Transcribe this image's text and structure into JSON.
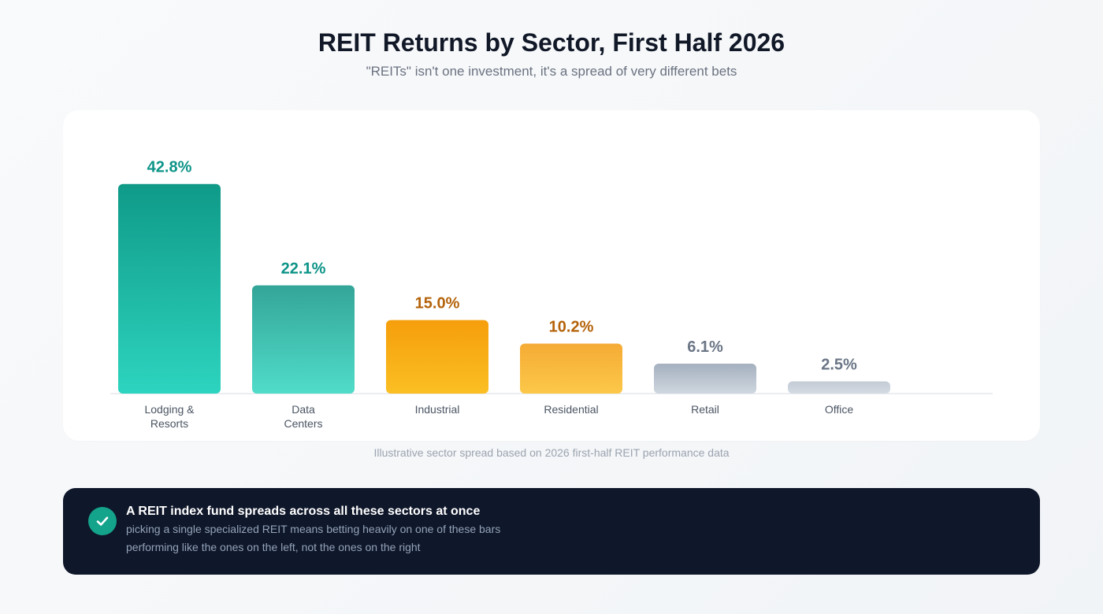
{
  "header": {
    "title": "REIT Returns by Sector, First Half 2026",
    "subtitle": "\"REITs\" isn't one investment, it's a spread of very different bets"
  },
  "chart_data": {
    "type": "bar",
    "categories": [
      "Lodging & Resorts",
      "Data Centers",
      "Industrial",
      "Residential",
      "Retail",
      "Office"
    ],
    "category_lines": [
      [
        "Lodging &",
        "Resorts"
      ],
      [
        "Data",
        "Centers"
      ],
      [
        "Industrial"
      ],
      [
        "Residential"
      ],
      [
        "Retail"
      ],
      [
        "Office"
      ]
    ],
    "values": [
      42.8,
      22.1,
      15.0,
      10.2,
      6.1,
      2.5
    ],
    "value_labels": [
      "42.8%",
      "22.1%",
      "15.0%",
      "10.2%",
      "6.1%",
      "2.5%"
    ],
    "title": "",
    "xlabel": "",
    "ylabel": "",
    "ylim": [
      0,
      45
    ],
    "grid": false,
    "colors": [
      {
        "top": "#0f9a88",
        "bottom": "#2dd4bf",
        "label": "#0d9488"
      },
      {
        "top": "#34a598",
        "bottom": "#50dcc9",
        "label": "#0d9488"
      },
      {
        "top": "#f59e0b",
        "bottom": "#fbbf24",
        "label": "#b4630a"
      },
      {
        "top": "#f5ab35",
        "bottom": "#fcc84a",
        "label": "#b4630a"
      },
      {
        "top": "#a5b0bf",
        "bottom": "#cfd6df",
        "label": "#6b7686"
      },
      {
        "top": "#c3cbd5",
        "bottom": "#d5dbe3",
        "label": "#6b7686"
      }
    ]
  },
  "caption": "Illustrative sector spread based on 2026 first-half REIT performance data",
  "callout": {
    "icon": "check-icon",
    "title": "A REIT index fund spreads across all these sectors at once",
    "line1": "picking a single specialized REIT means betting heavily on one of these bars",
    "line2": "performing like the ones on the left, not the ones on the right"
  }
}
